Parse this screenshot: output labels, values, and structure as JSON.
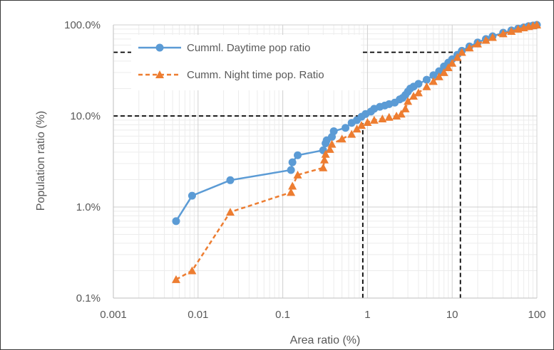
{
  "chart_data": {
    "type": "scatter",
    "x_scale": "log",
    "y_scale": "log",
    "xlabel": "Area ratio (%)",
    "ylabel": "Population ratio (%)",
    "xlim": [
      0.001,
      100
    ],
    "ylim": [
      0.1,
      100
    ],
    "x_ticks": [
      "0.001",
      "0.01",
      "0.1",
      "1",
      "10",
      "100"
    ],
    "y_ticks": [
      "0.1%",
      "1.0%",
      "10.0%",
      "100.0%"
    ],
    "grid": true,
    "legend_position": "top-left",
    "reference_lines": [
      {
        "y": 10,
        "x": 0.88
      },
      {
        "y": 50,
        "x": 12.5
      }
    ],
    "series": [
      {
        "name": "Cumml. Daytime pop ratio",
        "color": "#5b9bd5",
        "line_style": "solid",
        "marker": "circle",
        "points": [
          [
            0.0055,
            0.7
          ],
          [
            0.0085,
            1.33
          ],
          [
            0.024,
            1.97
          ],
          [
            0.125,
            2.55
          ],
          [
            0.13,
            3.1
          ],
          [
            0.15,
            3.7
          ],
          [
            0.3,
            4.2
          ],
          [
            0.32,
            5.0
          ],
          [
            0.33,
            5.4
          ],
          [
            0.38,
            5.9
          ],
          [
            0.4,
            6.8
          ],
          [
            0.55,
            7.4
          ],
          [
            0.65,
            8.4
          ],
          [
            0.75,
            9.0
          ],
          [
            0.85,
            9.8
          ],
          [
            0.95,
            10.5
          ],
          [
            1.1,
            11.2
          ],
          [
            1.2,
            12.0
          ],
          [
            1.4,
            12.6
          ],
          [
            1.6,
            13.0
          ],
          [
            1.8,
            13.5
          ],
          [
            2.1,
            14.0
          ],
          [
            2.4,
            15.2
          ],
          [
            2.6,
            15.8
          ],
          [
            2.8,
            17.0
          ],
          [
            3.0,
            18.5
          ],
          [
            3.2,
            20.0
          ],
          [
            3.5,
            21.0
          ],
          [
            4.0,
            22.5
          ],
          [
            5.0,
            25.0
          ],
          [
            6.0,
            28.0
          ],
          [
            7.0,
            31.0
          ],
          [
            8.0,
            35.0
          ],
          [
            9.0,
            38.5
          ],
          [
            10.0,
            42.0
          ],
          [
            11.5,
            47.0
          ],
          [
            13.0,
            52.0
          ],
          [
            16.0,
            58.0
          ],
          [
            20.0,
            64.0
          ],
          [
            25.0,
            70.0
          ],
          [
            30.0,
            75.0
          ],
          [
            40.0,
            82.0
          ],
          [
            50.0,
            87.0
          ],
          [
            60.0,
            91.0
          ],
          [
            70.0,
            94.0
          ],
          [
            80.0,
            97.0
          ],
          [
            90.0,
            98.5
          ],
          [
            100.0,
            100.0
          ]
        ]
      },
      {
        "name": "Cumm. Night time pop. Ratio",
        "color": "#ed7d31",
        "line_style": "dashed",
        "marker": "triangle",
        "points": [
          [
            0.0055,
            0.16
          ],
          [
            0.0085,
            0.2
          ],
          [
            0.024,
            0.88
          ],
          [
            0.125,
            1.45
          ],
          [
            0.13,
            1.7
          ],
          [
            0.15,
            2.25
          ],
          [
            0.3,
            2.7
          ],
          [
            0.31,
            3.3
          ],
          [
            0.32,
            3.8
          ],
          [
            0.36,
            4.3
          ],
          [
            0.38,
            4.9
          ],
          [
            0.5,
            5.6
          ],
          [
            0.65,
            6.3
          ],
          [
            0.75,
            7.2
          ],
          [
            0.85,
            7.9
          ],
          [
            1.0,
            8.5
          ],
          [
            1.2,
            9.0
          ],
          [
            1.5,
            9.3
          ],
          [
            1.8,
            9.7
          ],
          [
            2.2,
            10.0
          ],
          [
            2.5,
            10.5
          ],
          [
            2.8,
            12.0
          ],
          [
            3.0,
            14.5
          ],
          [
            3.5,
            16.5
          ],
          [
            4.0,
            18.0
          ],
          [
            5.0,
            21.0
          ],
          [
            6.0,
            24.0
          ],
          [
            7.0,
            27.0
          ],
          [
            8.0,
            30.0
          ],
          [
            9.0,
            34.0
          ],
          [
            10.0,
            38.0
          ],
          [
            11.5,
            44.0
          ],
          [
            13.0,
            50.0
          ],
          [
            16.0,
            56.0
          ],
          [
            20.0,
            62.0
          ],
          [
            25.0,
            68.0
          ],
          [
            30.0,
            73.0
          ],
          [
            40.0,
            80.0
          ],
          [
            50.0,
            85.0
          ],
          [
            60.0,
            90.0
          ],
          [
            70.0,
            93.0
          ],
          [
            80.0,
            96.0
          ],
          [
            90.0,
            98.0
          ],
          [
            100.0,
            100.0
          ]
        ]
      }
    ]
  }
}
